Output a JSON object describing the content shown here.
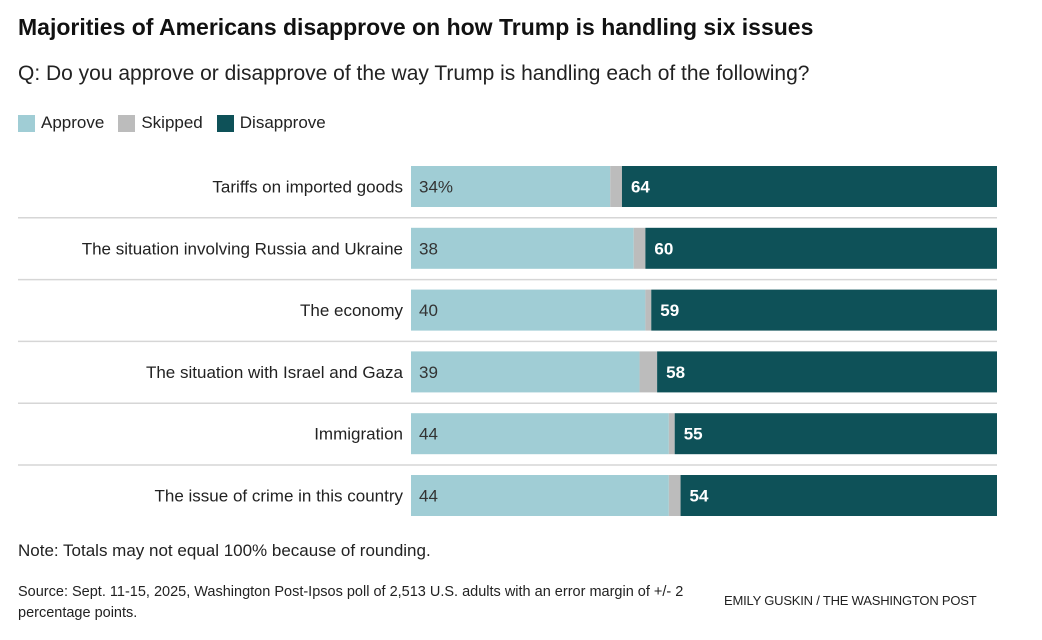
{
  "title": "Majorities of Americans disapprove on how Trump is handling six issues",
  "subtitle": "Q: Do you approve or disapprove of the way Trump is handling each of the following?",
  "note": "Note: Totals may not equal 100% because of rounding.",
  "source": "Source: Sept. 11-15, 2025, Washington Post-Ipsos poll of 2,513 U.S. adults with an error margin of +/- 2 percentage points.",
  "credit": "EMILY GUSKIN / THE WASHINGTON POST",
  "chart_data": {
    "type": "bar",
    "orientation": "horizontal-stacked",
    "categories": [
      "Tariffs on imported goods",
      "The situation involving Russia and Ukraine",
      "The economy",
      "The situation with Israel and Gaza",
      "Immigration",
      "The issue of crime in this country"
    ],
    "series": [
      {
        "name": "Approve",
        "color": "#a0cdd5",
        "values": [
          34,
          38,
          40,
          39,
          44,
          44
        ],
        "labels": [
          "34%",
          "38",
          "40",
          "39",
          "44",
          "44"
        ]
      },
      {
        "name": "Skipped",
        "color": "#bcbcbc",
        "values": [
          2,
          2,
          1,
          3,
          1,
          2
        ]
      },
      {
        "name": "Disapprove",
        "color": "#0e5158",
        "values": [
          64,
          60,
          59,
          58,
          55,
          54
        ],
        "labels": [
          "64",
          "60",
          "59",
          "58",
          "55",
          "54"
        ]
      }
    ],
    "xlim": [
      0,
      100
    ],
    "legend": "top-left"
  }
}
